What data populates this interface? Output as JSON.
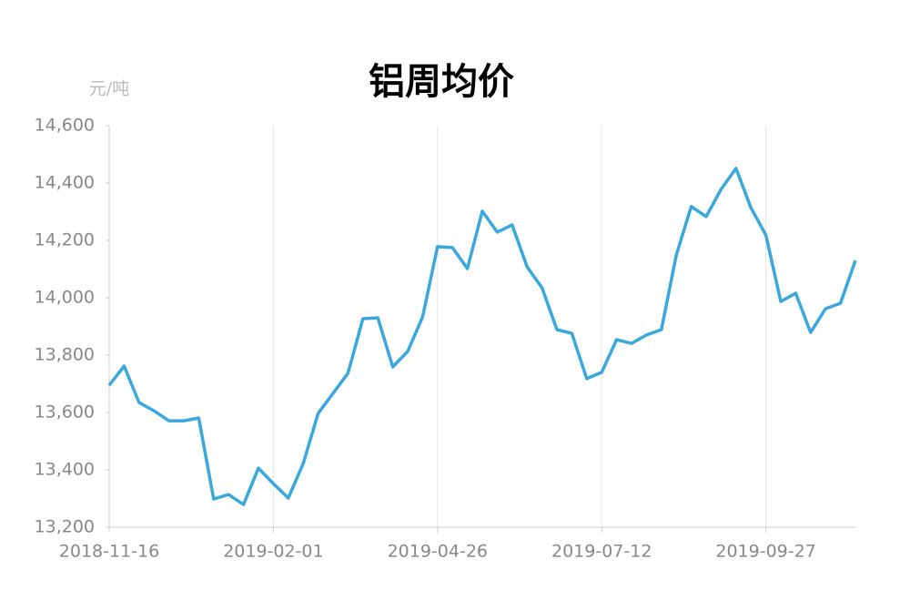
{
  "chart_data": {
    "type": "line",
    "title": "铝周均价",
    "y_label": "元/吨",
    "categories": [
      "2018-11-16",
      null,
      null,
      null,
      null,
      null,
      null,
      null,
      null,
      null,
      null,
      "2019-02-01",
      null,
      null,
      null,
      null,
      null,
      null,
      null,
      null,
      null,
      null,
      "2019-04-26",
      null,
      null,
      null,
      null,
      null,
      null,
      null,
      null,
      null,
      null,
      "2019-07-12",
      null,
      null,
      null,
      null,
      null,
      null,
      null,
      null,
      null,
      null,
      "2019-09-27",
      null,
      null,
      null,
      null,
      null,
      null
    ],
    "series": [
      {
        "name": "铝周均价",
        "color": "#3aa8dc",
        "values": [
          13695,
          13762,
          13635,
          13606,
          13571,
          13571,
          13581,
          13298,
          13314,
          13279,
          13406,
          13352,
          13302,
          13422,
          13597,
          13667,
          13737,
          13927,
          13930,
          13759,
          13813,
          13933,
          14178,
          14175,
          14102,
          14302,
          14229,
          14254,
          14108,
          14035,
          13889,
          13876,
          13718,
          13740,
          13854,
          13841,
          13870,
          13889,
          14149,
          14318,
          14283,
          14378,
          14451,
          14314,
          14219,
          13987,
          14016,
          13879,
          13962,
          13981,
          14130
        ]
      }
    ],
    "ylim": [
      13200,
      14600
    ],
    "yticks": [
      {
        "value": 13200,
        "label": "13,200"
      },
      {
        "value": 13400,
        "label": "13,400"
      },
      {
        "value": 13600,
        "label": "13,600"
      },
      {
        "value": 13800,
        "label": "13,800"
      },
      {
        "value": 14000,
        "label": "14,000"
      },
      {
        "value": 14200,
        "label": "14,200"
      },
      {
        "value": 14400,
        "label": "14,400"
      },
      {
        "value": 14600,
        "label": "14,600"
      }
    ],
    "grid": "x"
  }
}
